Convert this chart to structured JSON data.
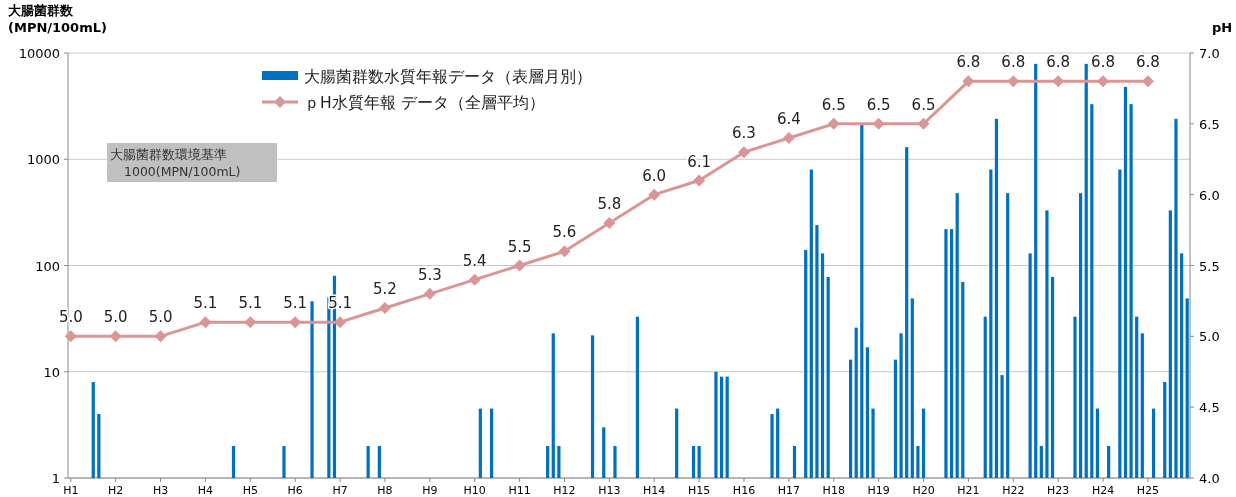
{
  "chart_data": {
    "type": "bar",
    "ylabel": "大腸菌群数\n(MPN/100mL)",
    "y2label": "pH",
    "annotations": [
      "大腸菌群数環境基準\n1000(MPN/100mL)"
    ],
    "log": "y",
    "grid": "y",
    "legend": "top left",
    "marker": "diamond",
    "categories": [
      "H1",
      null,
      null,
      null,
      null,
      null,
      null,
      null,
      "H2",
      null,
      null,
      null,
      null,
      null,
      null,
      null,
      "H3",
      null,
      null,
      null,
      null,
      null,
      null,
      null,
      "H4",
      null,
      null,
      null,
      null,
      null,
      null,
      null,
      "H5",
      null,
      null,
      null,
      null,
      null,
      null,
      null,
      "H6",
      null,
      null,
      null,
      null,
      null,
      null,
      null,
      "H7",
      null,
      null,
      null,
      null,
      null,
      null,
      null,
      "H8",
      null,
      null,
      null,
      null,
      null,
      null,
      null,
      "H9",
      null,
      null,
      null,
      null,
      null,
      null,
      null,
      "H10",
      null,
      null,
      null,
      null,
      null,
      null,
      null,
      "H11",
      null,
      null,
      null,
      null,
      null,
      null,
      null,
      "H12",
      null,
      null,
      null,
      null,
      null,
      null,
      null,
      "H13",
      null,
      null,
      null,
      null,
      null,
      null,
      null,
      "H14",
      null,
      null,
      null,
      null,
      null,
      null,
      null,
      "H15",
      null,
      null,
      null,
      null,
      null,
      null,
      null,
      "H16",
      null,
      null,
      null,
      null,
      null,
      null,
      null,
      "H17",
      null,
      null,
      null,
      null,
      null,
      null,
      null,
      "H18",
      null,
      null,
      null,
      null,
      null,
      null,
      null,
      "H19",
      null,
      null,
      null,
      null,
      null,
      null,
      null,
      "H20",
      null,
      null,
      null,
      null,
      null,
      null,
      null,
      "H21",
      null,
      null,
      null,
      null,
      null,
      null,
      null,
      "H22",
      null,
      null,
      null,
      null,
      null,
      null,
      null,
      "H23",
      null,
      null,
      null,
      null,
      null,
      null,
      null,
      "H24",
      null,
      null,
      null,
      null,
      null,
      null,
      null,
      "H25",
      null,
      null,
      null,
      null,
      null,
      null,
      null
    ],
    "ylim": [
      1,
      10000
    ],
    "yticks": [
      1,
      10,
      100,
      1000,
      10000
    ],
    "y2lim": [
      4,
      7
    ],
    "y2ticks": [
      {
        "value": 4,
        "label": "4.0"
      },
      {
        "value": 4.5,
        "label": "4.5"
      },
      {
        "value": 5,
        "label": "5.0"
      },
      {
        "value": 5.5,
        "label": "5.5"
      },
      {
        "value": 6,
        "label": "6.0"
      },
      {
        "value": 6.5,
        "label": "6.5"
      },
      {
        "value": 7,
        "label": "7.0"
      }
    ],
    "series": [
      {
        "name": "大腸菌群数水質年報データ（表層月別）",
        "color": "#0070c0",
        "values": [
          null,
          null,
          null,
          null,
          8,
          4,
          null,
          null,
          null,
          null,
          null,
          null,
          null,
          null,
          null,
          null,
          null,
          null,
          null,
          null,
          null,
          null,
          null,
          null,
          null,
          null,
          null,
          null,
          null,
          2,
          null,
          null,
          null,
          null,
          null,
          null,
          null,
          null,
          2,
          null,
          null,
          null,
          null,
          46,
          null,
          null,
          50,
          80,
          null,
          null,
          null,
          null,
          null,
          2,
          null,
          2,
          null,
          null,
          null,
          null,
          null,
          null,
          null,
          null,
          null,
          null,
          null,
          null,
          null,
          null,
          null,
          null,
          null,
          4.5,
          null,
          4.5,
          null,
          null,
          null,
          null,
          null,
          null,
          null,
          null,
          null,
          2,
          23,
          2,
          null,
          null,
          null,
          null,
          null,
          22,
          null,
          3,
          null,
          2,
          null,
          null,
          null,
          33,
          null,
          null,
          null,
          null,
          null,
          null,
          4.5,
          null,
          null,
          2,
          2,
          null,
          null,
          10,
          9,
          9,
          null,
          null,
          null,
          null,
          null,
          null,
          null,
          4,
          4.5,
          null,
          null,
          2,
          null,
          140,
          800,
          240,
          130,
          78,
          null,
          null,
          null,
          13,
          26,
          2100,
          17,
          4.5,
          null,
          null,
          null,
          13,
          23,
          1300,
          49,
          2,
          4.5,
          null,
          null,
          null,
          220,
          220,
          480,
          70,
          null,
          null,
          null,
          33,
          800,
          2400,
          9.3,
          480,
          null,
          null,
          null,
          130,
          7900,
          2,
          330,
          78,
          null,
          null,
          null,
          33,
          480,
          7900,
          3300,
          4.5,
          null,
          2,
          null,
          800,
          4800,
          3300,
          33,
          23,
          null,
          4.5,
          null,
          8,
          330,
          2400,
          130,
          49
        ]
      },
      {
        "name": "ｐH水質年報 データ（全層平均）",
        "type": "line",
        "axis": "y2",
        "color": "#d99694",
        "values": [
          5.0,
          null,
          null,
          null,
          null,
          null,
          null,
          null,
          5.0,
          null,
          null,
          null,
          null,
          null,
          null,
          null,
          5.0,
          null,
          null,
          null,
          null,
          null,
          null,
          null,
          5.1,
          null,
          null,
          null,
          null,
          null,
          null,
          null,
          5.1,
          null,
          null,
          null,
          null,
          null,
          null,
          null,
          5.1,
          null,
          null,
          null,
          null,
          null,
          null,
          null,
          5.1,
          null,
          null,
          null,
          null,
          null,
          null,
          null,
          5.2,
          null,
          null,
          null,
          null,
          null,
          null,
          null,
          5.3,
          null,
          null,
          null,
          null,
          null,
          null,
          null,
          5.4,
          null,
          null,
          null,
          null,
          null,
          null,
          null,
          5.5,
          null,
          null,
          null,
          null,
          null,
          null,
          null,
          5.6,
          null,
          null,
          null,
          null,
          null,
          null,
          null,
          5.8,
          null,
          null,
          null,
          null,
          null,
          null,
          null,
          6.0,
          null,
          null,
          null,
          null,
          null,
          null,
          null,
          6.1,
          null,
          null,
          null,
          null,
          null,
          null,
          null,
          6.3,
          null,
          null,
          null,
          null,
          null,
          null,
          null,
          6.4,
          null,
          null,
          null,
          null,
          null,
          null,
          null,
          6.5,
          null,
          null,
          null,
          null,
          null,
          null,
          null,
          6.5,
          null,
          null,
          null,
          null,
          null,
          null,
          null,
          6.5,
          null,
          null,
          null,
          null,
          null,
          null,
          null,
          6.8,
          null,
          null,
          null,
          null,
          null,
          null,
          null,
          6.8,
          null,
          null,
          null,
          null,
          null,
          null,
          null,
          6.8,
          null,
          null,
          null,
          null,
          null,
          null,
          null,
          6.8,
          null,
          null,
          null,
          null,
          null,
          null,
          null,
          6.8,
          null,
          null,
          null,
          null,
          null,
          null,
          null
        ],
        "value_labels": [
          "5.0",
          null,
          null,
          null,
          null,
          null,
          null,
          null,
          "5.0",
          null,
          null,
          null,
          null,
          null,
          null,
          null,
          "5.0",
          null,
          null,
          null,
          null,
          null,
          null,
          null,
          "5.1",
          null,
          null,
          null,
          null,
          null,
          null,
          null,
          "5.1",
          null,
          null,
          null,
          null,
          null,
          null,
          null,
          "5.1",
          null,
          null,
          null,
          null,
          null,
          null,
          null,
          "5.1",
          null,
          null,
          null,
          null,
          null,
          null,
          null,
          "5.2",
          null,
          null,
          null,
          null,
          null,
          null,
          null,
          "5.3",
          null,
          null,
          null,
          null,
          null,
          null,
          null,
          "5.4",
          null,
          null,
          null,
          null,
          null,
          null,
          null,
          "5.5",
          null,
          null,
          null,
          null,
          null,
          null,
          null,
          "5.6",
          null,
          null,
          null,
          null,
          null,
          null,
          null,
          "5.8",
          null,
          null,
          null,
          null,
          null,
          null,
          null,
          "6.0",
          null,
          null,
          null,
          null,
          null,
          null,
          null,
          "6.1",
          null,
          null,
          null,
          null,
          null,
          null,
          null,
          "6.3",
          null,
          null,
          null,
          null,
          null,
          null,
          null,
          "6.4",
          null,
          null,
          null,
          null,
          null,
          null,
          null,
          "6.5",
          null,
          null,
          null,
          null,
          null,
          null,
          null,
          "6.5",
          null,
          null,
          null,
          null,
          null,
          null,
          null,
          "6.5",
          null,
          null,
          null,
          null,
          null,
          null,
          null,
          "6.8",
          null,
          null,
          null,
          null,
          null,
          null,
          null,
          "6.8",
          null,
          null,
          null,
          null,
          null,
          null,
          null,
          "6.8",
          null,
          null,
          null,
          null,
          null,
          null,
          null,
          "6.8",
          null,
          null,
          null,
          null,
          null,
          null,
          null,
          "6.8",
          null,
          null,
          null,
          null,
          null,
          null,
          null
        ]
      }
    ]
  }
}
